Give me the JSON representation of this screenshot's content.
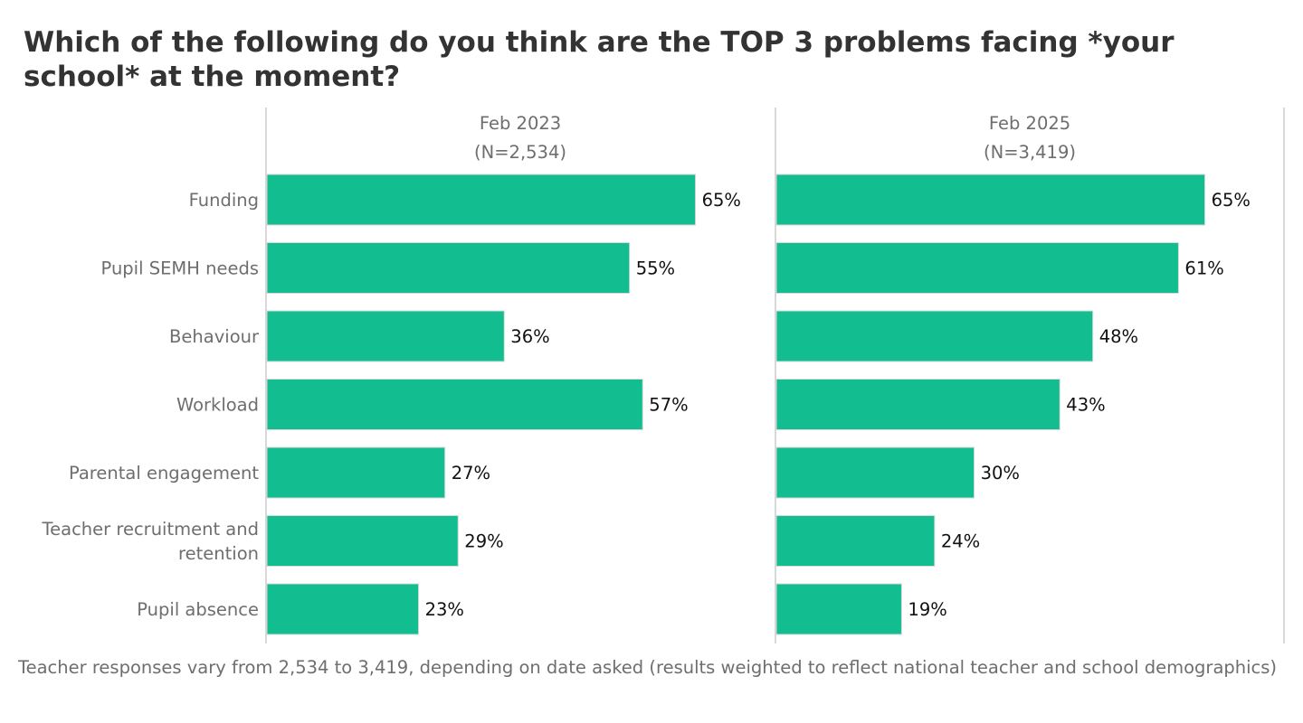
{
  "chart_data": {
    "type": "bar",
    "orientation": "horizontal",
    "title": "Which of the following do you think are the TOP 3 problems facing *your school* at the moment?",
    "categories": [
      "Funding",
      "Pupil SEMH needs",
      "Behaviour",
      "Workload",
      "Parental engagement",
      "Teacher recruitment and retention",
      "Pupil absence"
    ],
    "series": [
      {
        "name": "Feb 2023",
        "sample": "(N=2,534)",
        "values": [
          65,
          55,
          36,
          57,
          27,
          29,
          23
        ],
        "value_labels": [
          "65%",
          "55%",
          "36%",
          "57%",
          "27%",
          "29%",
          "23%"
        ]
      },
      {
        "name": "Feb 2025",
        "sample": "(N=3,419)",
        "values": [
          65,
          61,
          48,
          43,
          30,
          24,
          19
        ],
        "value_labels": [
          "65%",
          "61%",
          "48%",
          "43%",
          "30%",
          "24%",
          "19%"
        ]
      }
    ],
    "xlim": [
      0,
      77
    ],
    "grid": false,
    "bar_color": "#12bd8f",
    "footnote": "Teacher responses vary from 2,534 to 3,419, depending on date asked (results weighted to reflect national teacher and school demographics)"
  }
}
